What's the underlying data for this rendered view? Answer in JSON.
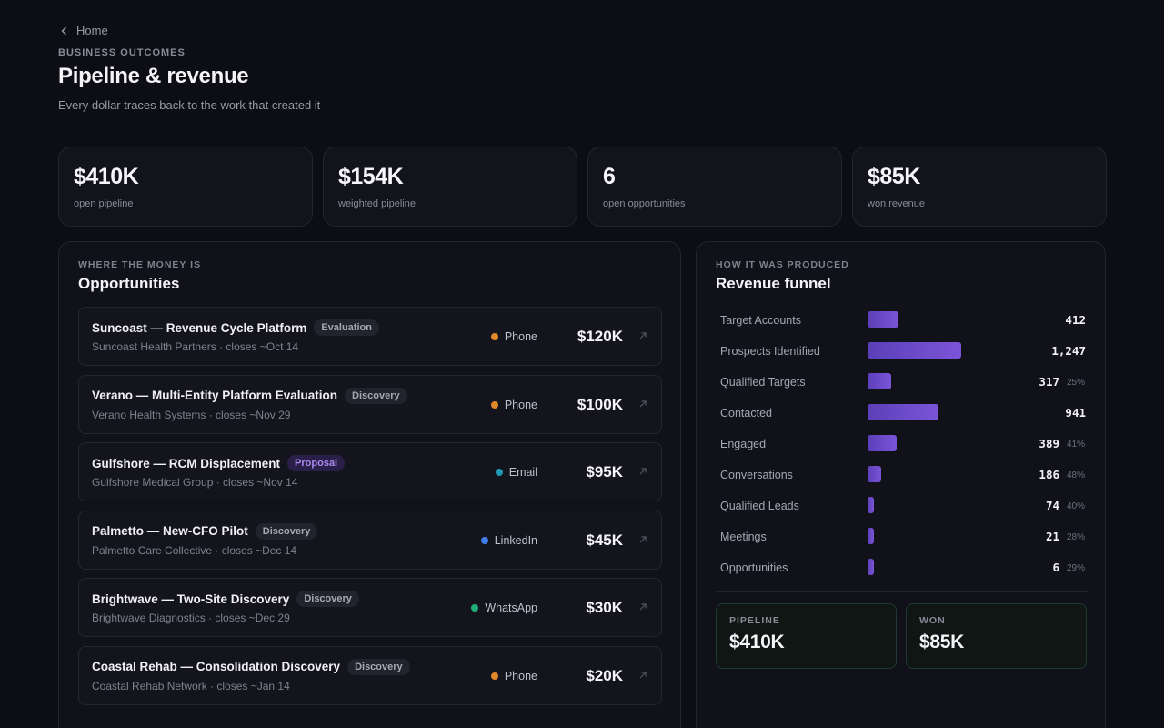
{
  "nav": {
    "back_label": "Home"
  },
  "header": {
    "eyebrow": "BUSINESS OUTCOMES",
    "title": "Pipeline & revenue",
    "subtitle": "Every dollar traces back to the work that created it"
  },
  "kpis": [
    {
      "value": "$410K",
      "label": "open pipeline"
    },
    {
      "value": "$154K",
      "label": "weighted pipeline"
    },
    {
      "value": "6",
      "label": "open opportunities"
    },
    {
      "value": "$85K",
      "label": "won revenue"
    }
  ],
  "opportunities_panel": {
    "eyebrow": "WHERE THE MONEY IS",
    "title": "Opportunities",
    "items": [
      {
        "title": "Suncoast — Revenue Cycle Platform",
        "stage": "Evaluation",
        "subtitle": "Suncoast Health Partners · closes ~Oct 14",
        "channel": "Phone",
        "channel_color": "#e0872a",
        "amount": "$120K"
      },
      {
        "title": "Verano — Multi-Entity Platform Evaluation",
        "stage": "Discovery",
        "subtitle": "Verano Health Systems · closes ~Nov 29",
        "channel": "Phone",
        "channel_color": "#e0872a",
        "amount": "$100K"
      },
      {
        "title": "Gulfshore — RCM Displacement",
        "stage": "Proposal",
        "subtitle": "Gulfshore Medical Group · closes ~Nov 14",
        "channel": "Email",
        "channel_color": "#1f9bb8",
        "amount": "$95K"
      },
      {
        "title": "Palmetto — New-CFO Pilot",
        "stage": "Discovery",
        "subtitle": "Palmetto Care Collective · closes ~Dec 14",
        "channel": "LinkedIn",
        "channel_color": "#3f7de8",
        "amount": "$45K"
      },
      {
        "title": "Brightwave — Two-Site Discovery",
        "stage": "Discovery",
        "subtitle": "Brightwave Diagnostics · closes ~Dec 29",
        "channel": "WhatsApp",
        "channel_color": "#1fae78",
        "amount": "$30K"
      },
      {
        "title": "Coastal Rehab — Consolidation Discovery",
        "stage": "Discovery",
        "subtitle": "Coastal Rehab Network · closes ~Jan 14",
        "channel": "Phone",
        "channel_color": "#e0872a",
        "amount": "$20K"
      }
    ]
  },
  "funnel_panel": {
    "eyebrow": "HOW IT WAS PRODUCED",
    "title": "Revenue funnel",
    "max_value": 1247,
    "rows": [
      {
        "label": "Target Accounts",
        "value": "412",
        "num": 412,
        "pct": ""
      },
      {
        "label": "Prospects Identified",
        "value": "1,247",
        "num": 1247,
        "pct": ""
      },
      {
        "label": "Qualified Targets",
        "value": "317",
        "num": 317,
        "pct": "25%"
      },
      {
        "label": "Contacted",
        "value": "941",
        "num": 941,
        "pct": ""
      },
      {
        "label": "Engaged",
        "value": "389",
        "num": 389,
        "pct": "41%"
      },
      {
        "label": "Conversations",
        "value": "186",
        "num": 186,
        "pct": "48%"
      },
      {
        "label": "Qualified Leads",
        "value": "74",
        "num": 74,
        "pct": "40%"
      },
      {
        "label": "Meetings",
        "value": "21",
        "num": 21,
        "pct": "28%"
      },
      {
        "label": "Opportunities",
        "value": "6",
        "num": 6,
        "pct": "29%"
      }
    ],
    "summary": {
      "pipeline_label": "PIPELINE",
      "pipeline_value": "$410K",
      "won_label": "WON",
      "won_value": "$85K"
    }
  }
}
